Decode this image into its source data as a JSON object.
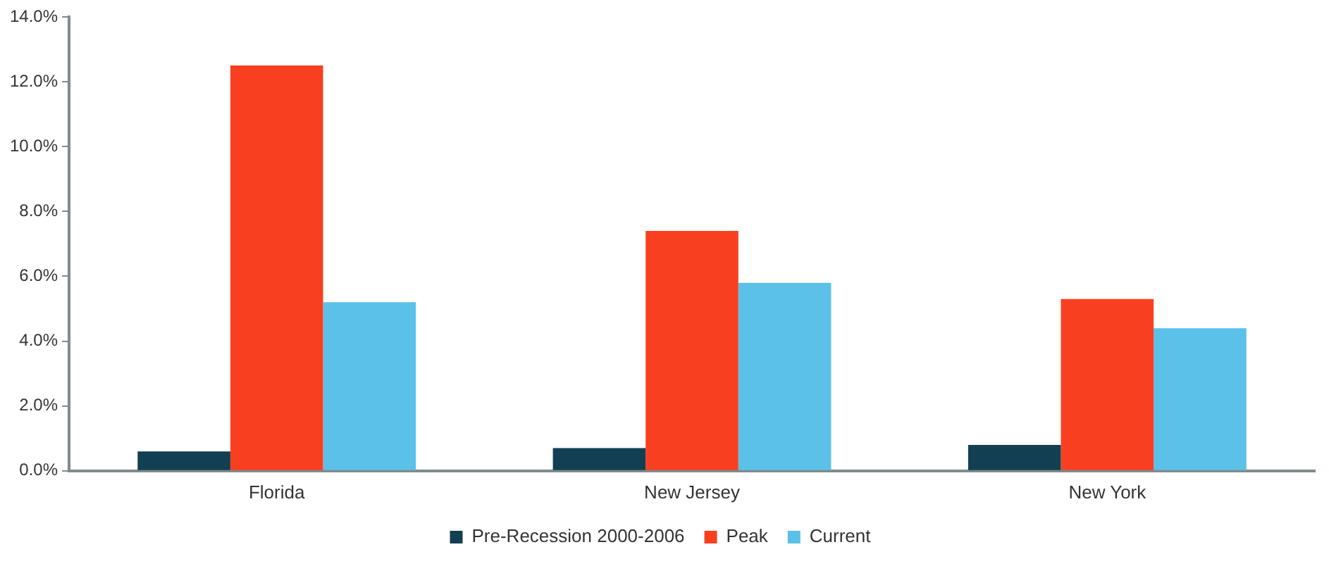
{
  "chart_data": {
    "type": "bar",
    "categories": [
      "Florida",
      "New Jersey",
      "New York"
    ],
    "series": [
      {
        "name": "Pre-Recession 2000-2006",
        "color": "#123f52",
        "values": [
          0.6,
          0.7,
          0.8
        ]
      },
      {
        "name": "Peak",
        "color": "#f84020",
        "values": [
          12.5,
          7.4,
          5.3
        ]
      },
      {
        "name": "Current",
        "color": "#5bc1e8",
        "values": [
          5.2,
          5.8,
          4.4
        ]
      }
    ],
    "ylim": [
      0,
      14
    ],
    "yticks": [
      {
        "value": 0,
        "label": "0.0%"
      },
      {
        "value": 2,
        "label": "2.0%"
      },
      {
        "value": 4,
        "label": "4.0%"
      },
      {
        "value": 6,
        "label": "6.0%"
      },
      {
        "value": 8,
        "label": "8.0%"
      },
      {
        "value": 10,
        "label": "10.0%"
      },
      {
        "value": 12,
        "label": "12.0%"
      },
      {
        "value": 14,
        "label": "14.0%"
      }
    ],
    "grid": false,
    "legend": "bottom"
  }
}
